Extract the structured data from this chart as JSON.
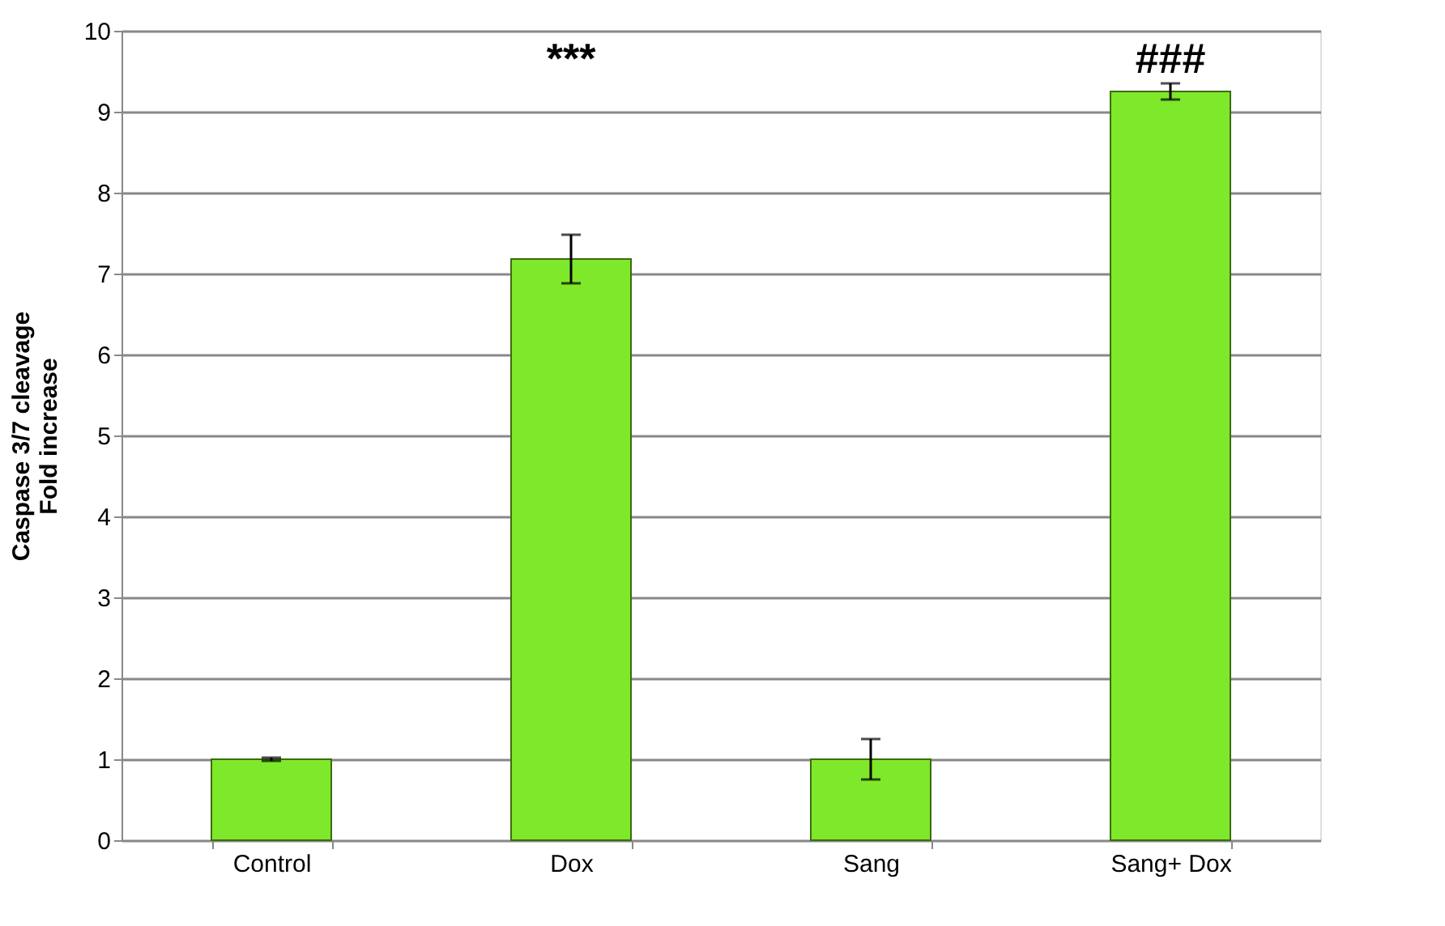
{
  "chart_data": {
    "type": "bar",
    "ylabel": "Caspase 3/7 cleavage\nFold increase",
    "categories": [
      "Control",
      "Dox",
      "Sang",
      "Sang+ Dox"
    ],
    "values": [
      1,
      7.18,
      1,
      9.25
    ],
    "color": "#7ee82a",
    "errors": [
      0.02,
      0.3,
      0.25,
      0.1
    ],
    "ylim": [
      0,
      10
    ],
    "yticks": [
      0,
      1,
      2,
      3,
      4,
      5,
      6,
      7,
      8,
      9,
      10
    ],
    "grid": "y",
    "annotations": [
      "***",
      "###"
    ]
  }
}
